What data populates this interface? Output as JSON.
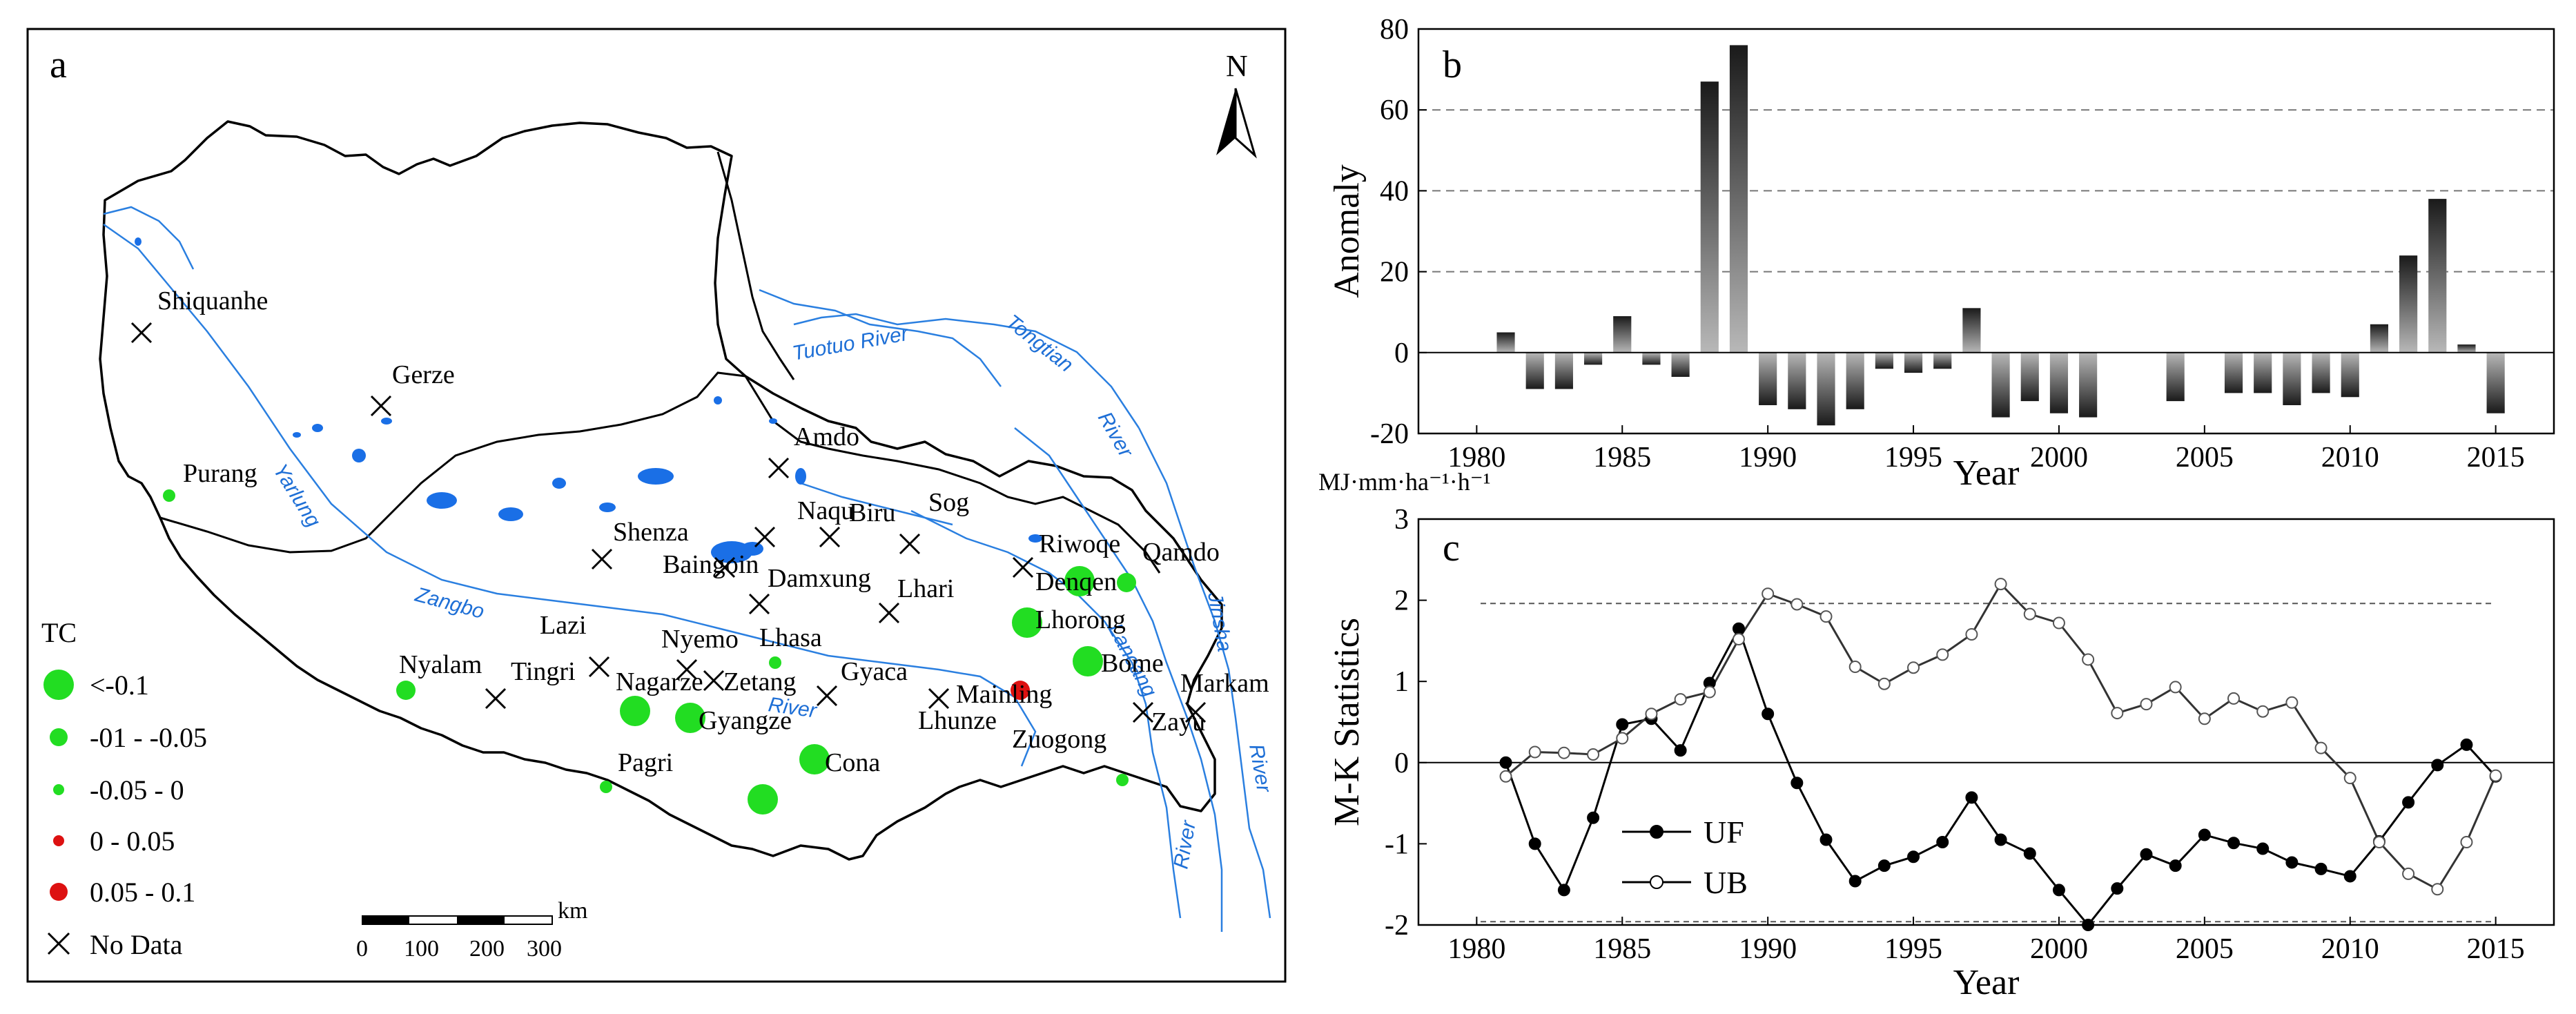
{
  "panel_a": {
    "label": "a",
    "north_label": "N",
    "legend": {
      "title": "TC",
      "entries": [
        {
          "label": "<-0.1",
          "color": "#22dd22",
          "symbol": "circle-large"
        },
        {
          "label": "-01 - -0.05",
          "color": "#22dd22",
          "symbol": "circle-medium"
        },
        {
          "label": "-0.05 - 0",
          "color": "#22dd22",
          "symbol": "circle-small"
        },
        {
          "label": "0 - 0.05",
          "color": "#dd1111",
          "symbol": "circle-small"
        },
        {
          "label": "0.05 - 0.1",
          "color": "#dd1111",
          "symbol": "circle-medium"
        },
        {
          "label": "No Data",
          "color": "#000000",
          "symbol": "cross"
        }
      ]
    },
    "scale_bar": {
      "unit": "km",
      "ticks": [
        "0",
        "100",
        "200",
        "300"
      ]
    },
    "rivers": [
      "Tuotuo River",
      "Tongtian",
      "River",
      "Yarlung",
      "Zangbo",
      "River",
      "Lancang",
      "Jinsha",
      "River",
      "River"
    ],
    "stations": [
      {
        "name": "Shiquanhe",
        "category": "No Data"
      },
      {
        "name": "Gerze",
        "category": "No Data"
      },
      {
        "name": "Purang",
        "category": "-0.05 - 0"
      },
      {
        "name": "Amdo",
        "category": "No Data"
      },
      {
        "name": "Naqu",
        "category": "No Data"
      },
      {
        "name": "Biru",
        "category": "No Data"
      },
      {
        "name": "Sog",
        "category": "No Data"
      },
      {
        "name": "Shenza",
        "category": "No Data"
      },
      {
        "name": "Baingoin",
        "category": "No Data"
      },
      {
        "name": "Damxung",
        "category": "No Data"
      },
      {
        "name": "Lhari",
        "category": "No Data"
      },
      {
        "name": "Riwoqe",
        "category": "No Data"
      },
      {
        "name": "Qamdo",
        "category": "-01 - -0.05"
      },
      {
        "name": "Denqen",
        "category": "<-0.1"
      },
      {
        "name": "Lhorong",
        "category": "<-0.1"
      },
      {
        "name": "Lazi",
        "category": "No Data"
      },
      {
        "name": "Nyemo",
        "category": "No Data"
      },
      {
        "name": "Lhasa",
        "category": "-0.05 - 0"
      },
      {
        "name": "Nyalam",
        "category": "-01 - -0.05"
      },
      {
        "name": "Tingri",
        "category": "No Data"
      },
      {
        "name": "Nagarze",
        "category": "<-0.1"
      },
      {
        "name": "Zetang",
        "category": "No Data"
      },
      {
        "name": "Gyaca",
        "category": "No Data"
      },
      {
        "name": "Bome",
        "category": "<-0.1"
      },
      {
        "name": "Gyangze",
        "category": "<-0.1"
      },
      {
        "name": "Lhunze",
        "category": "No Data"
      },
      {
        "name": "Mainling",
        "category": "0.05 - 0.1"
      },
      {
        "name": "Markam",
        "category": "No Data"
      },
      {
        "name": "Zayu",
        "category": "No Data"
      },
      {
        "name": "Zuogong",
        "category": "-0.05 - 0"
      },
      {
        "name": "Pagri",
        "category": "-0.05 - 0"
      },
      {
        "name": "Cona",
        "category": "<-0.1"
      },
      {
        "name": "",
        "category": "<-0.1"
      }
    ]
  },
  "chart_data": [
    {
      "panel": "b",
      "type": "bar",
      "title": "",
      "xlabel": "Year",
      "ylabel": "Anomaly",
      "unit_label": "MJ·mm·ha⁻¹·h⁻¹",
      "xlim": [
        1978,
        2017
      ],
      "ylim": [
        -20,
        80
      ],
      "x_ticks": [
        1980,
        1985,
        1990,
        1995,
        2000,
        2005,
        2010,
        2015
      ],
      "y_ticks": [
        -20,
        0,
        20,
        40,
        60,
        80
      ],
      "gridlines": [
        -20,
        20,
        40,
        60
      ],
      "x": [
        1981,
        1982,
        1983,
        1984,
        1985,
        1986,
        1987,
        1988,
        1989,
        1990,
        1991,
        1992,
        1993,
        1994,
        1995,
        1996,
        1997,
        1998,
        1999,
        2000,
        2001,
        2004,
        2006,
        2007,
        2008,
        2009,
        2010,
        2011,
        2012,
        2013,
        2014,
        2015
      ],
      "values": [
        5,
        -9,
        -9,
        -3,
        9,
        -3,
        -6,
        67,
        76,
        -13,
        -14,
        -18,
        -14,
        -4,
        -5,
        -4,
        11,
        -16,
        -12,
        -15,
        -16,
        -12,
        -10,
        -10,
        -13,
        -10,
        -11,
        7,
        24,
        38,
        2,
        -15
      ]
    },
    {
      "panel": "c",
      "type": "line",
      "title": "",
      "xlabel": "Year",
      "ylabel": "M-K Statistics",
      "xlim": [
        1978,
        2017
      ],
      "ylim": [
        -2,
        3
      ],
      "x_ticks": [
        1980,
        1985,
        1990,
        1995,
        2000,
        2005,
        2010,
        2015
      ],
      "y_ticks": [
        -2,
        -1,
        0,
        1,
        2,
        3
      ],
      "reference_lines": [
        1.96,
        -1.96
      ],
      "x": [
        1981,
        1982,
        1983,
        1984,
        1985,
        1986,
        1987,
        1988,
        1989,
        1990,
        1991,
        1992,
        1993,
        1994,
        1995,
        1996,
        1997,
        1998,
        1999,
        2000,
        2001,
        2002,
        2003,
        2004,
        2005,
        2006,
        2007,
        2008,
        2009,
        2010,
        2011,
        2012,
        2013,
        2014,
        2015
      ],
      "series": [
        {
          "name": "UF",
          "marker": "filled",
          "values": [
            0,
            -1,
            -1.57,
            -0.68,
            0.47,
            0.54,
            0.15,
            0.98,
            1.65,
            0.6,
            -0.25,
            -0.95,
            -1.46,
            -1.27,
            -1.16,
            -0.98,
            -0.43,
            -0.95,
            -1.12,
            -1.57,
            -2,
            -1.55,
            -1.13,
            -1.27,
            -0.89,
            -0.99,
            -1.06,
            -1.23,
            -1.31,
            -1.4,
            -0.97,
            -0.49,
            -0.03,
            0.22,
            -0.17
          ]
        },
        {
          "name": "UB",
          "marker": "open",
          "values": [
            -0.17,
            0.13,
            0.12,
            0.1,
            0.3,
            0.6,
            0.78,
            0.87,
            1.52,
            2.08,
            1.95,
            1.8,
            1.18,
            0.97,
            1.17,
            1.33,
            1.58,
            2.2,
            1.83,
            1.72,
            1.27,
            0.61,
            0.72,
            0.93,
            0.54,
            0.79,
            0.63,
            0.74,
            0.18,
            -0.19,
            -0.98,
            -1.37,
            -1.56,
            -0.98,
            -0.16
          ]
        }
      ]
    }
  ]
}
